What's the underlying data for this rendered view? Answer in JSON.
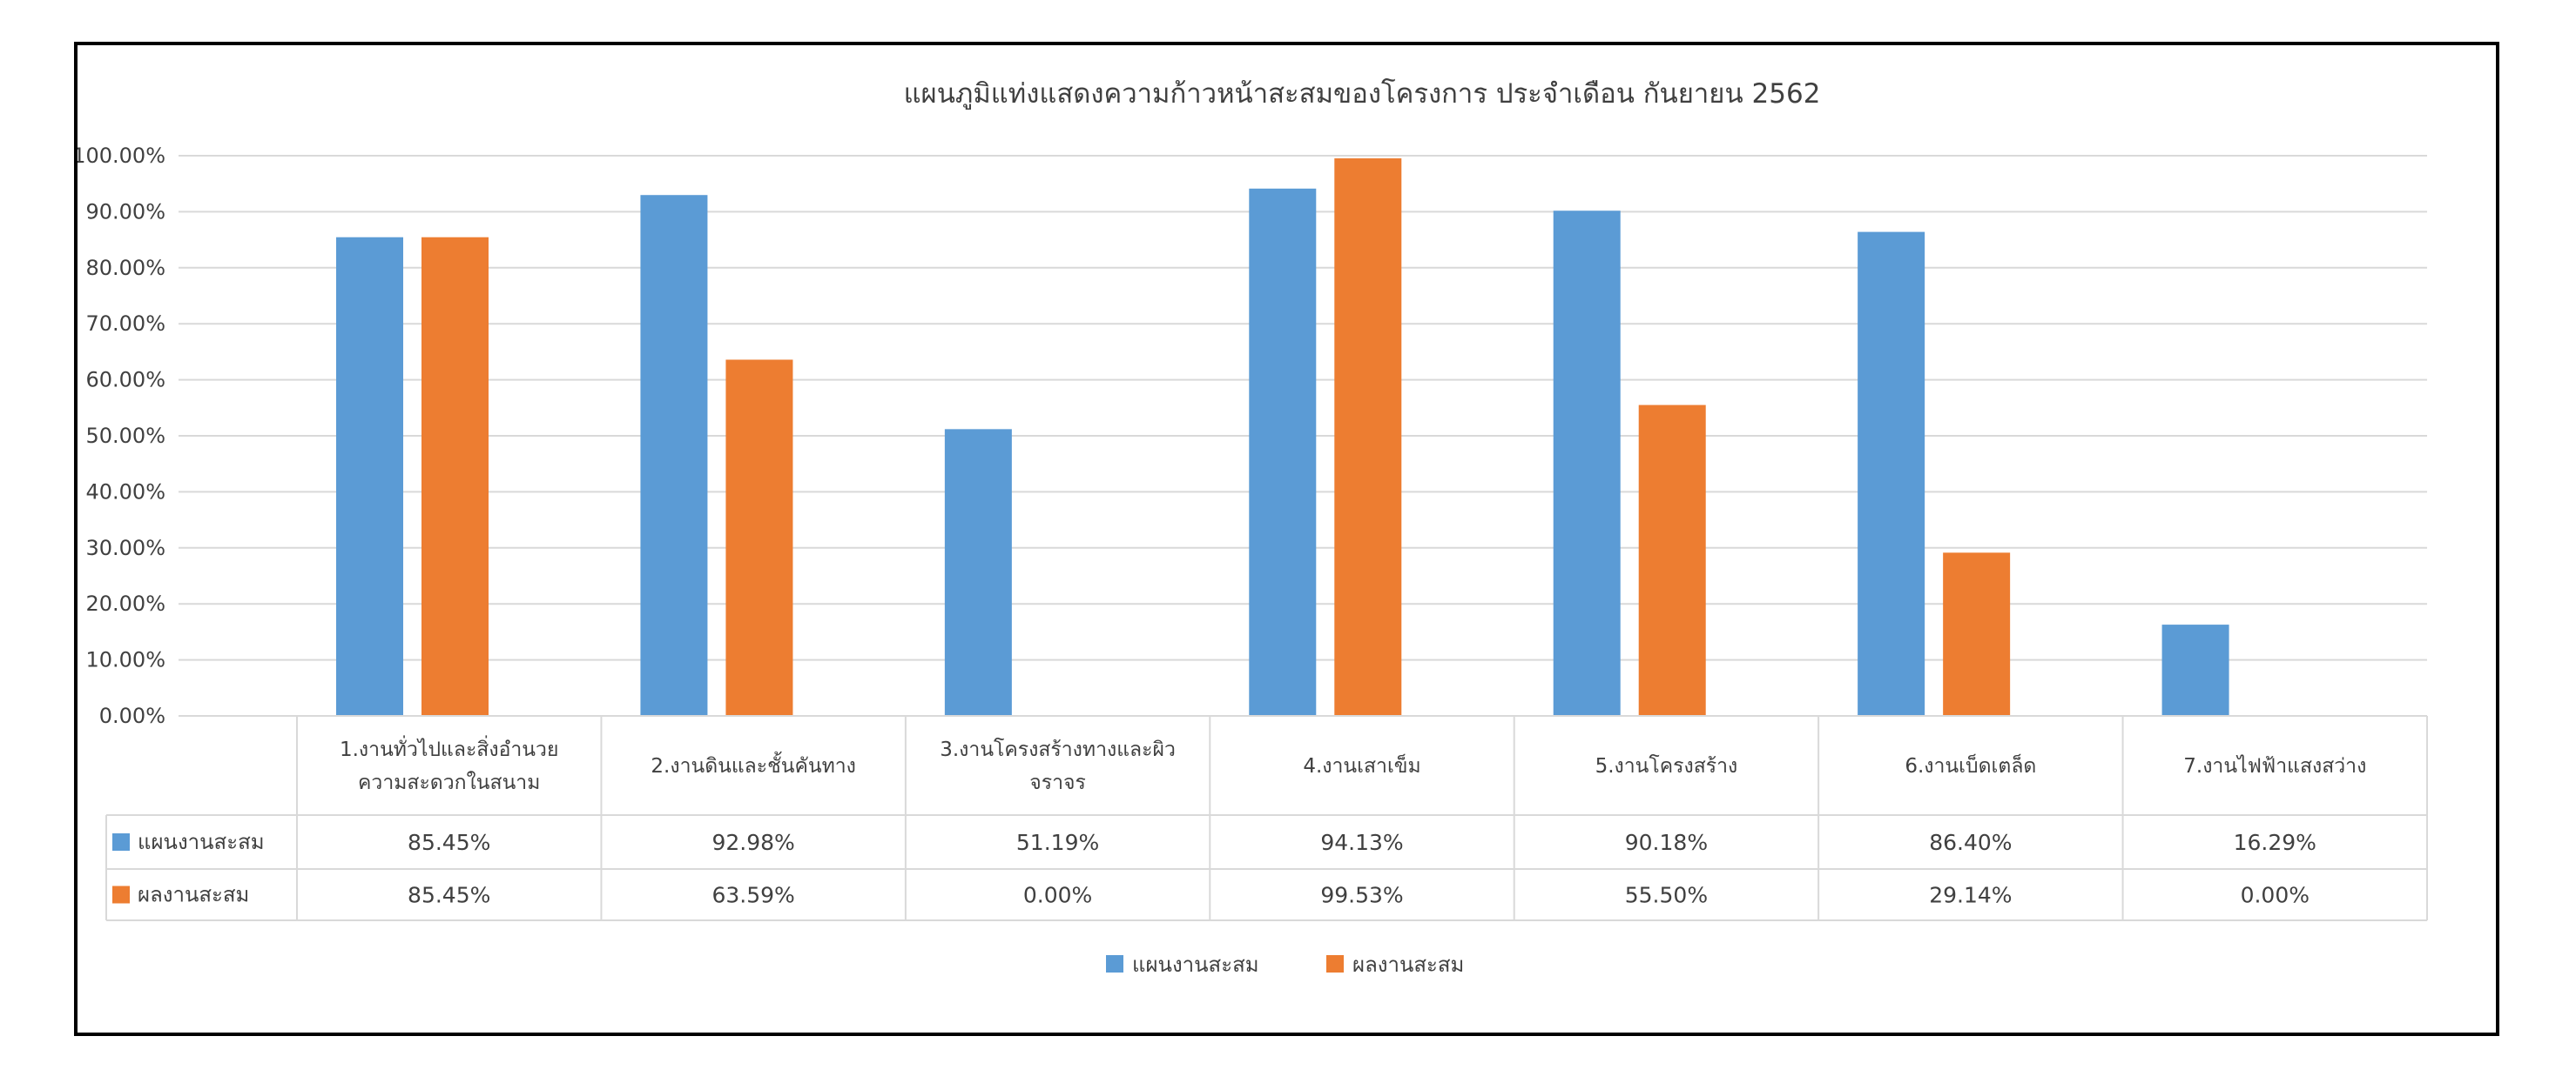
{
  "chart_data": {
    "type": "bar",
    "title": "แผนภูมิแท่งแสดงความก้าวหน้าสะสมของโครงการ ประจำเดือน กันยายน 2562",
    "categories": [
      [
        "1.งานทั่วไปและสิ่งอำนวย",
        "ความสะดวกในสนาม"
      ],
      [
        "2.งานดินและชั้นคันทาง"
      ],
      [
        "3.งานโครงสร้างทางและผิว",
        "จราจร"
      ],
      [
        "4.งานเสาเข็ม"
      ],
      [
        "5.งานโครงสร้าง"
      ],
      [
        "6.งานเบ็ดเตล็ด"
      ],
      [
        "7.งานไฟฟ้าแสงสว่าง"
      ]
    ],
    "series": [
      {
        "name": "แผนงานสะสม",
        "color": "#5b9bd5",
        "values": [
          85.45,
          92.98,
          51.19,
          94.13,
          90.18,
          86.4,
          16.29
        ],
        "labels": [
          "85.45%",
          "92.98%",
          "51.19%",
          "94.13%",
          "90.18%",
          "86.40%",
          "16.29%"
        ]
      },
      {
        "name": "ผลงานสะสม",
        "color": "#ed7d31",
        "values": [
          85.45,
          63.59,
          0.0,
          99.53,
          55.5,
          29.14,
          0.0
        ],
        "labels": [
          "85.45%",
          "63.59%",
          "0.00%",
          "99.53%",
          "55.50%",
          "29.14%",
          "0.00%"
        ]
      }
    ],
    "ylim": [
      0,
      100
    ],
    "yticks": [
      "0.00%",
      "10.00%",
      "20.00%",
      "30.00%",
      "40.00%",
      "50.00%",
      "60.00%",
      "70.00%",
      "80.00%",
      "90.00%",
      "100.00%"
    ],
    "grid": true,
    "legend": "bottom",
    "data_table": true
  }
}
